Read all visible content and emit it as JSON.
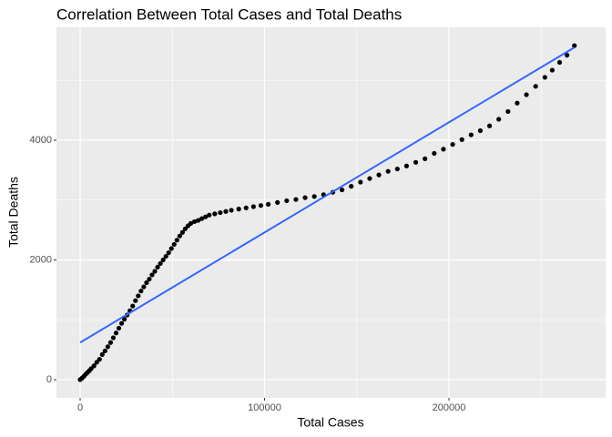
{
  "chart_data": {
    "type": "scatter",
    "title": "Correlation Between Total Cases and Total Deaths",
    "x_label": "Total Cases",
    "y_label": "Total Deaths",
    "xlim": [
      -12840,
      284940
    ],
    "ylim": [
      -304,
      5886
    ],
    "xticks": [
      0,
      100000,
      200000
    ],
    "yticks": [
      0,
      2000,
      4000
    ],
    "minor_xticks": [
      50000,
      150000,
      250000
    ],
    "minor_yticks": [
      1000,
      3000,
      5000
    ],
    "grid": true,
    "points": {
      "color": "#000000",
      "x": [
        0,
        1000,
        2000,
        3000,
        4000,
        5000,
        6000,
        7500,
        9000,
        10500,
        12000,
        13500,
        15000,
        16500,
        18000,
        19500,
        21000,
        22500,
        24000,
        25500,
        27000,
        28500,
        30000,
        31500,
        33000,
        34500,
        36000,
        37500,
        39000,
        40500,
        42000,
        43500,
        45000,
        46500,
        48000,
        49500,
        51000,
        52500,
        54000,
        55500,
        57000,
        58500,
        60000,
        62000,
        64000,
        66000,
        68000,
        70000,
        73000,
        76000,
        79000,
        82000,
        86000,
        90000,
        94000,
        98000,
        102000,
        107000,
        112000,
        117000,
        122000,
        127000,
        132000,
        137000,
        142000,
        147000,
        152000,
        157000,
        162000,
        167000,
        172000,
        177000,
        182000,
        187000,
        192000,
        197000,
        202000,
        207000,
        212000,
        217000,
        222000,
        227000,
        232000,
        237000,
        242000,
        247000,
        252000,
        256000,
        260000,
        264000,
        268000
      ],
      "y": [
        0,
        25,
        55,
        90,
        120,
        150,
        185,
        230,
        290,
        340,
        420,
        480,
        550,
        620,
        700,
        780,
        860,
        940,
        1010,
        1080,
        1150,
        1230,
        1320,
        1400,
        1480,
        1550,
        1620,
        1680,
        1750,
        1810,
        1880,
        1940,
        2000,
        2060,
        2120,
        2190,
        2260,
        2330,
        2400,
        2460,
        2520,
        2570,
        2610,
        2640,
        2660,
        2690,
        2720,
        2750,
        2770,
        2790,
        2810,
        2830,
        2850,
        2870,
        2890,
        2910,
        2930,
        2960,
        2990,
        3010,
        3040,
        3060,
        3090,
        3130,
        3170,
        3230,
        3300,
        3360,
        3420,
        3480,
        3520,
        3570,
        3630,
        3690,
        3780,
        3850,
        3930,
        4010,
        4090,
        4160,
        4240,
        4350,
        4480,
        4620,
        4760,
        4900,
        5050,
        5170,
        5300,
        5420,
        5580
      ]
    },
    "fit_line": {
      "color": "#3366ff",
      "x": [
        0,
        268000
      ],
      "y": [
        620,
        5550
      ]
    }
  }
}
